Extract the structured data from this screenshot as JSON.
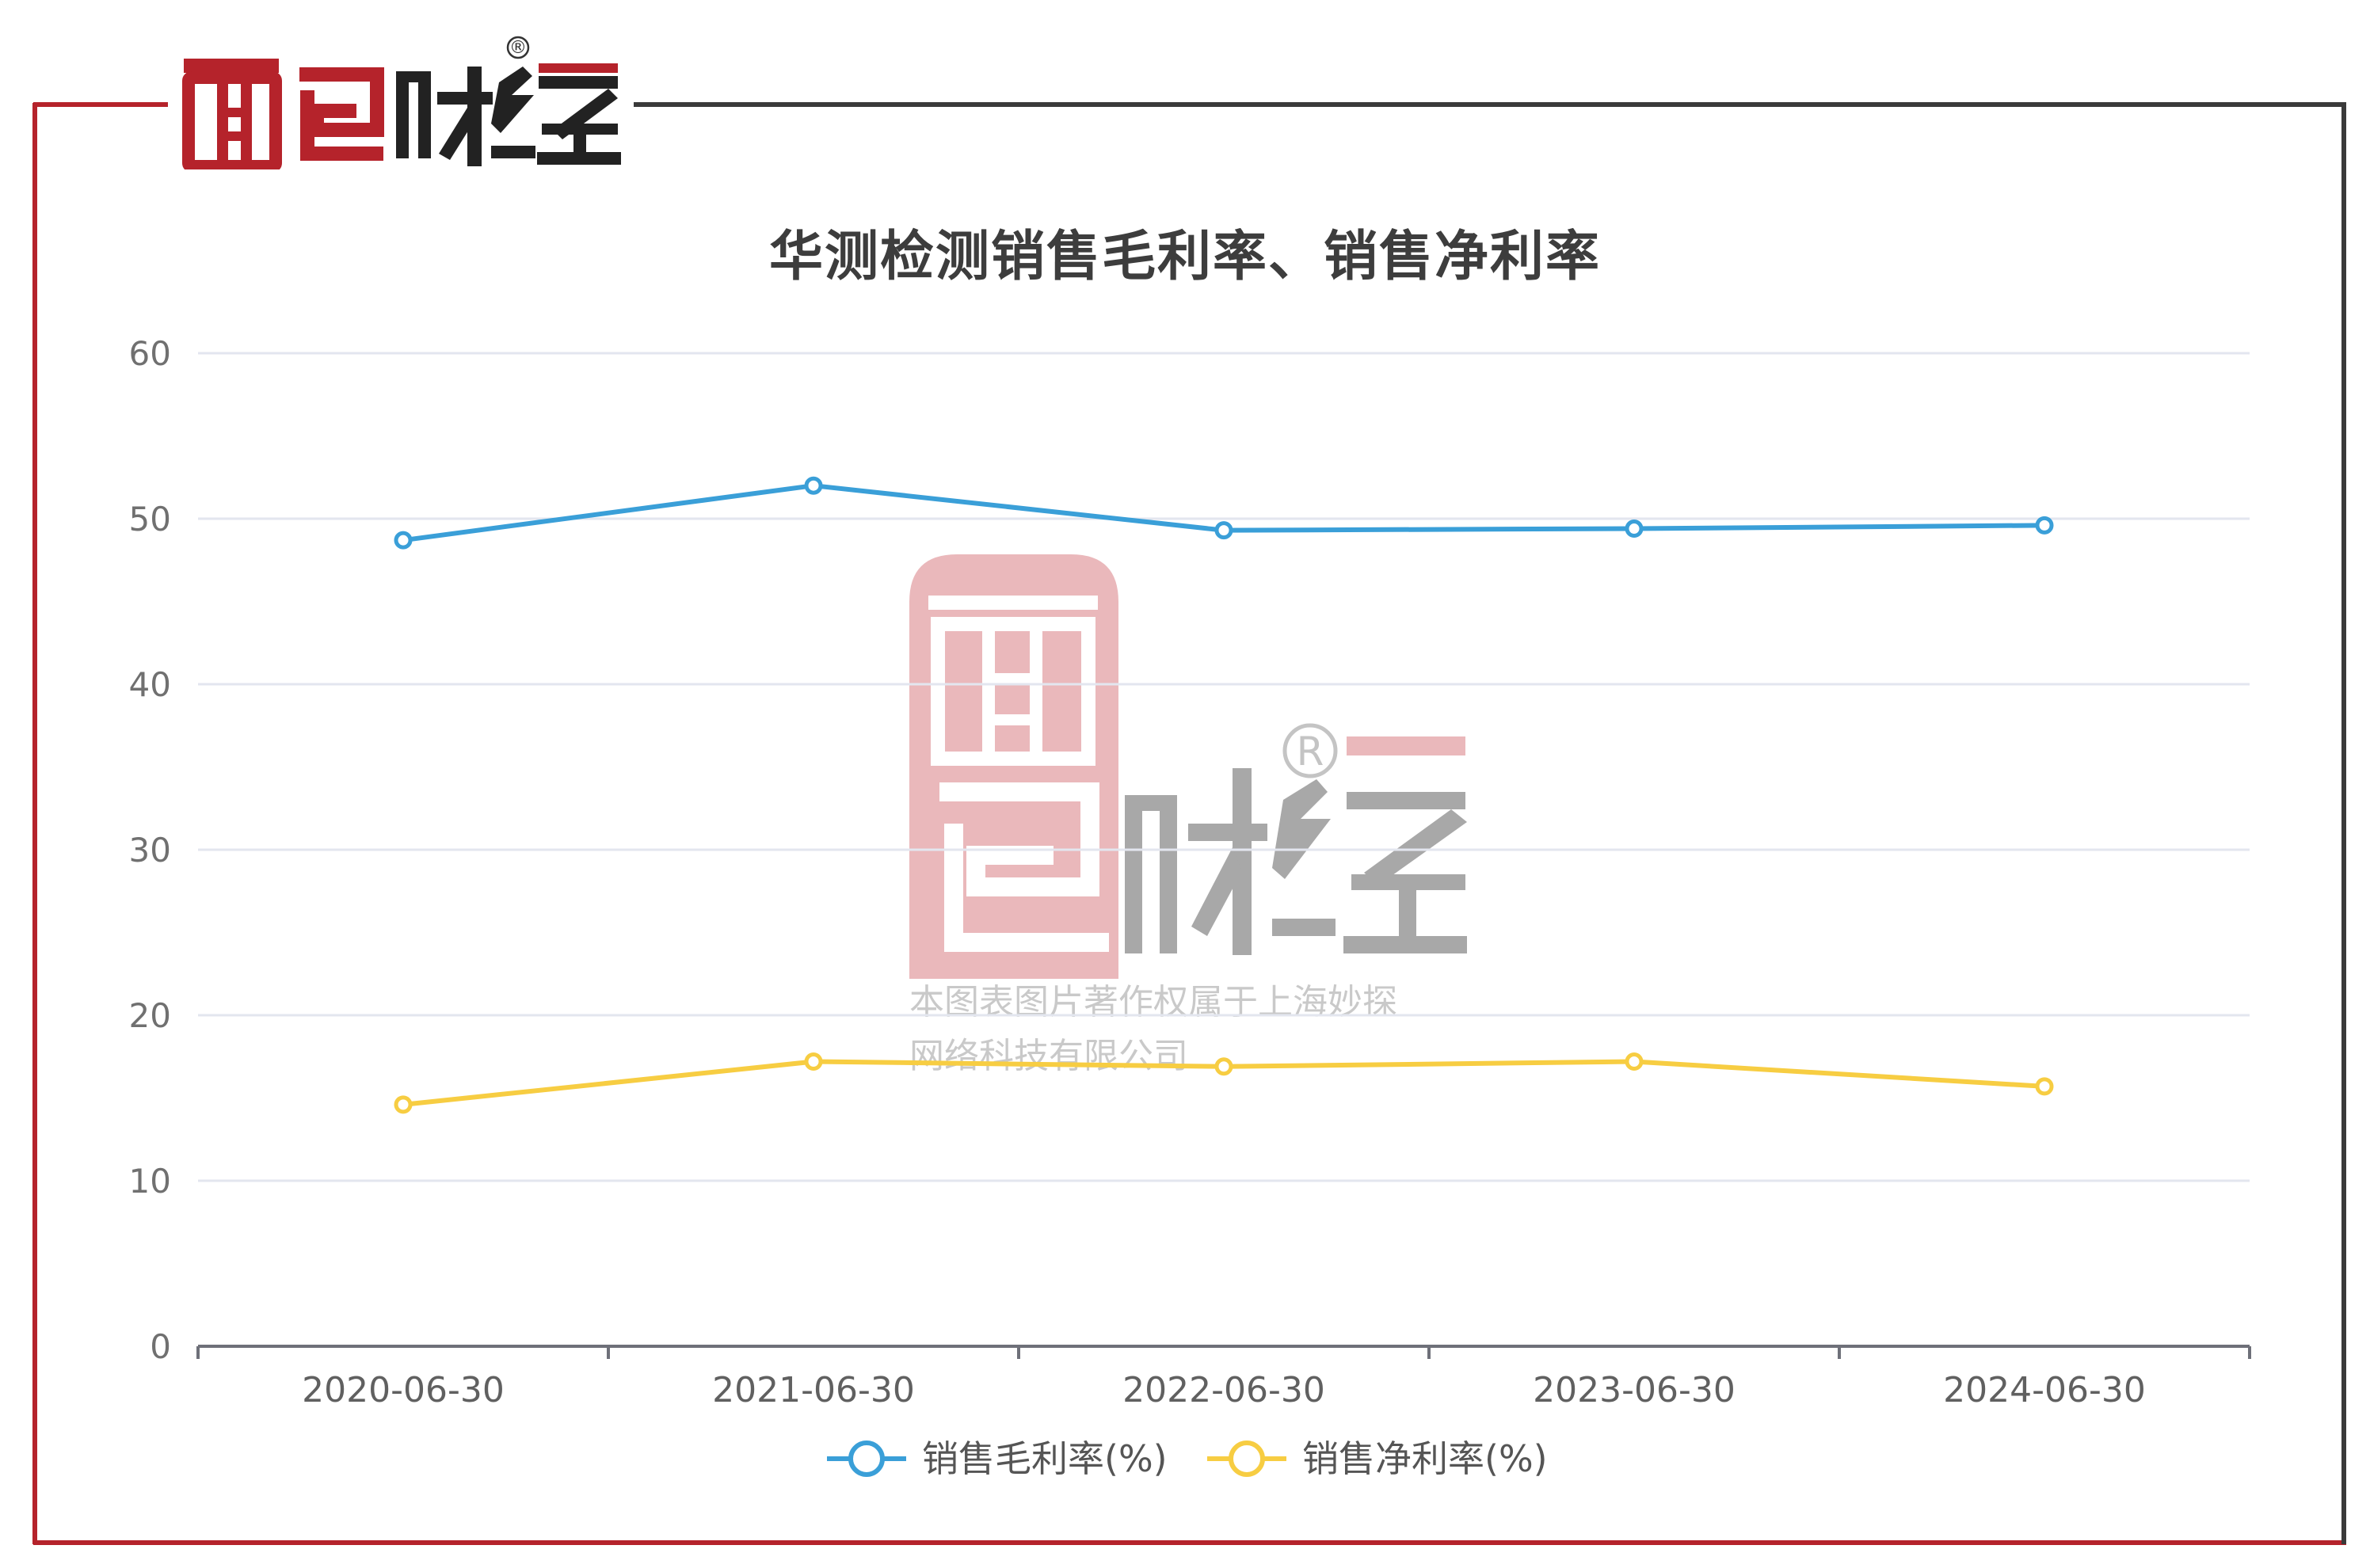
{
  "chart_data": {
    "type": "line",
    "title": "华测检测销售毛利率、销售净利率",
    "categories": [
      "2020-06-30",
      "2021-06-30",
      "2022-06-30",
      "2023-06-30",
      "2024-06-30"
    ],
    "series": [
      {
        "name": "销售毛利率(%)",
        "color": "#3a9fd8",
        "values": [
          48.7,
          52.0,
          49.3,
          49.4,
          49.6
        ]
      },
      {
        "name": "销售净利率(%)",
        "color": "#f7cd42",
        "values": [
          14.6,
          17.2,
          16.9,
          17.2,
          15.7
        ]
      }
    ],
    "yticks": [
      0,
      10,
      20,
      30,
      40,
      50,
      60
    ],
    "ylim": [
      0,
      60
    ],
    "grid": true,
    "legend": "bottom-center"
  },
  "branding": {
    "logo_text": "面包财经",
    "registered_mark": "®",
    "watermark_lines": [
      "本图表图片著作权属于上海妙探",
      "网络科技有限公司"
    ]
  },
  "colors": {
    "frame_red": "#b5232b",
    "frame_dark": "#3a3a3a",
    "logo_red": "#b5232b",
    "logo_dark": "#222222",
    "grid": "#e3e6ef"
  }
}
